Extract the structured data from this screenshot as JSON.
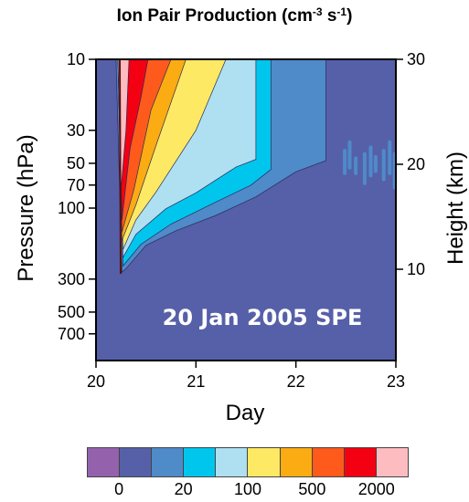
{
  "title": {
    "main": "Ion Pair Production (cm",
    "exp1": "-3",
    "mid": " s",
    "exp2": "-1",
    "end": ")"
  },
  "chart_data": {
    "type": "contour",
    "title": "Ion Pair Production (cm-3 s-1)",
    "xlabel": "Day",
    "ylabel": "Pressure (hPa)",
    "y2label": "Height (km)",
    "xlim": [
      20,
      23
    ],
    "ylim_pressure": [
      10,
      800
    ],
    "x_ticks": [
      "20",
      "21",
      "22",
      "23"
    ],
    "y_ticks": [
      "10",
      "30",
      "50",
      "70",
      "100",
      "300",
      "500",
      "700"
    ],
    "y2_ticks": [
      "10",
      "20",
      "30"
    ],
    "y_scale": "log",
    "annotation": "20 Jan 2005 SPE",
    "colorbar": {
      "levels": [
        0,
        20,
        100,
        500,
        2000
      ],
      "labels": [
        "0",
        "20",
        "100",
        "500",
        "2000"
      ],
      "colors": [
        "#9462ad",
        "#5560a8",
        "#4f8ac9",
        "#00c6ee",
        "#aee0f2",
        "#fde963",
        "#fbac12",
        "#fd5a1c",
        "#f30013",
        "#fdbcc0"
      ]
    },
    "contours": [
      {
        "level_index": 2,
        "color": "#4f8ac9",
        "boundary": [
          [
            20.26,
            270
          ],
          [
            20.3,
            255
          ],
          [
            20.5,
            178
          ],
          [
            20.8,
            142
          ],
          [
            21.2,
            112
          ],
          [
            21.6,
            84
          ],
          [
            22.0,
            57
          ],
          [
            22.3,
            48
          ],
          [
            22.3,
            10
          ],
          [
            20.2,
            10
          ]
        ]
      },
      {
        "level_index": 3,
        "color": "#00c6ee",
        "boundary": [
          [
            20.27,
            245
          ],
          [
            20.45,
            175
          ],
          [
            20.75,
            128
          ],
          [
            21.2,
            91
          ],
          [
            21.55,
            70
          ],
          [
            21.75,
            55
          ],
          [
            21.75,
            10
          ],
          [
            20.22,
            10
          ]
        ]
      },
      {
        "level_index": 4,
        "color": "#aee0f2",
        "boundary": [
          [
            20.27,
            215
          ],
          [
            20.4,
            150
          ],
          [
            20.7,
            101
          ],
          [
            21.0,
            79
          ],
          [
            21.4,
            53
          ],
          [
            21.6,
            47
          ],
          [
            21.6,
            10
          ],
          [
            20.22,
            10
          ]
        ]
      },
      {
        "level_index": 5,
        "color": "#fde963",
        "boundary": [
          [
            20.27,
            190
          ],
          [
            20.4,
            120
          ],
          [
            20.6,
            78
          ],
          [
            21.0,
            30
          ],
          [
            21.3,
            10
          ],
          [
            20.22,
            10
          ]
        ]
      },
      {
        "level_index": 6,
        "color": "#fbac12",
        "boundary": [
          [
            20.26,
            165
          ],
          [
            20.4,
            95
          ],
          [
            20.6,
            38
          ],
          [
            20.9,
            10
          ],
          [
            20.22,
            10
          ]
        ]
      },
      {
        "level_index": 7,
        "color": "#fd5a1c",
        "boundary": [
          [
            20.26,
            145
          ],
          [
            20.38,
            75
          ],
          [
            20.55,
            22
          ],
          [
            20.75,
            10
          ],
          [
            20.22,
            10
          ]
        ]
      },
      {
        "level_index": 8,
        "color": "#f30013",
        "boundary": [
          [
            20.26,
            120
          ],
          [
            20.34,
            40
          ],
          [
            20.45,
            18
          ],
          [
            20.52,
            10
          ],
          [
            20.22,
            10
          ]
        ]
      },
      {
        "level_index": 9,
        "color": "#fdbcc0",
        "boundary": [
          [
            20.25,
            75
          ],
          [
            20.3,
            30
          ],
          [
            20.33,
            10
          ],
          [
            20.22,
            10
          ]
        ]
      }
    ],
    "background_color": "#5560a8"
  }
}
